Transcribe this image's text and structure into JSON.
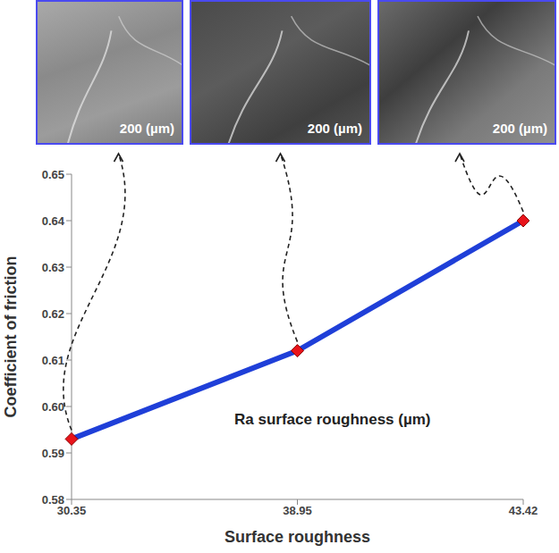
{
  "chart_data": {
    "type": "line",
    "x_label": "Surface roughness",
    "y_label": "Coefficient of friction",
    "annotations": [
      "Ra surface roughness (µm)"
    ],
    "categories": [
      "30.35",
      "38.95",
      "43.42"
    ],
    "values": [
      0.593,
      0.612,
      0.64
    ],
    "color": "#1f3fd8",
    "marker": "diamond",
    "ylim": [
      0.58,
      0.65
    ],
    "yticks": [
      0.58,
      0.59,
      {
        "value": 0.6,
        "label": "0.60"
      },
      0.61,
      0.62,
      0.63,
      0.64,
      0.65
    ],
    "grid": false,
    "insets": [
      {
        "category": "30.35",
        "scale_label": "200 (µm)"
      },
      {
        "category": "38.95",
        "scale_label": "200 (µm)"
      },
      {
        "category": "43.42",
        "scale_label": "200 (µm)"
      }
    ]
  }
}
